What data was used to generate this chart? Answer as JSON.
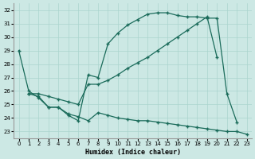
{
  "xlabel": "Humidex (Indice chaleur)",
  "bg_color": "#cce8e4",
  "grid_color": "#aad4ce",
  "line_color": "#1a6b5a",
  "xlim": [
    -0.5,
    23.5
  ],
  "ylim": [
    22.5,
    32.5
  ],
  "xticks": [
    0,
    1,
    2,
    3,
    4,
    5,
    6,
    7,
    8,
    9,
    10,
    11,
    12,
    13,
    14,
    15,
    16,
    17,
    18,
    19,
    20,
    21,
    22,
    23
  ],
  "yticks": [
    23,
    24,
    25,
    26,
    27,
    28,
    29,
    30,
    31,
    32
  ],
  "series1_x": [
    0,
    1,
    2,
    3,
    4,
    5,
    6,
    7,
    8,
    9,
    10,
    11,
    12,
    13,
    14,
    15,
    16,
    17,
    18,
    19,
    20,
    21,
    22
  ],
  "series1_y": [
    29.0,
    26.0,
    25.5,
    24.8,
    24.8,
    24.2,
    23.8,
    27.2,
    27.0,
    29.5,
    30.3,
    30.9,
    31.3,
    31.7,
    31.8,
    31.8,
    31.6,
    31.5,
    31.5,
    31.4,
    31.4,
    25.8,
    23.7
  ],
  "series2_x": [
    1,
    2,
    3,
    4,
    5,
    6,
    7,
    8,
    9,
    10,
    11,
    12,
    13,
    14,
    15,
    16,
    17,
    18,
    19,
    20
  ],
  "series2_y": [
    25.8,
    25.8,
    25.6,
    25.4,
    25.2,
    25.0,
    26.5,
    26.5,
    26.8,
    27.2,
    27.7,
    28.1,
    28.5,
    29.0,
    29.5,
    30.0,
    30.5,
    31.0,
    31.5,
    28.5
  ],
  "series3_x": [
    1,
    2,
    3,
    4,
    5,
    6,
    7,
    8,
    9,
    10,
    11,
    12,
    13,
    14,
    15,
    16,
    17,
    18,
    19,
    20,
    21,
    22,
    23
  ],
  "series3_y": [
    25.8,
    25.6,
    24.8,
    24.8,
    24.3,
    24.1,
    23.8,
    24.4,
    24.2,
    24.0,
    23.9,
    23.8,
    23.8,
    23.7,
    23.6,
    23.5,
    23.4,
    23.3,
    23.2,
    23.1,
    23.0,
    23.0,
    22.8
  ]
}
